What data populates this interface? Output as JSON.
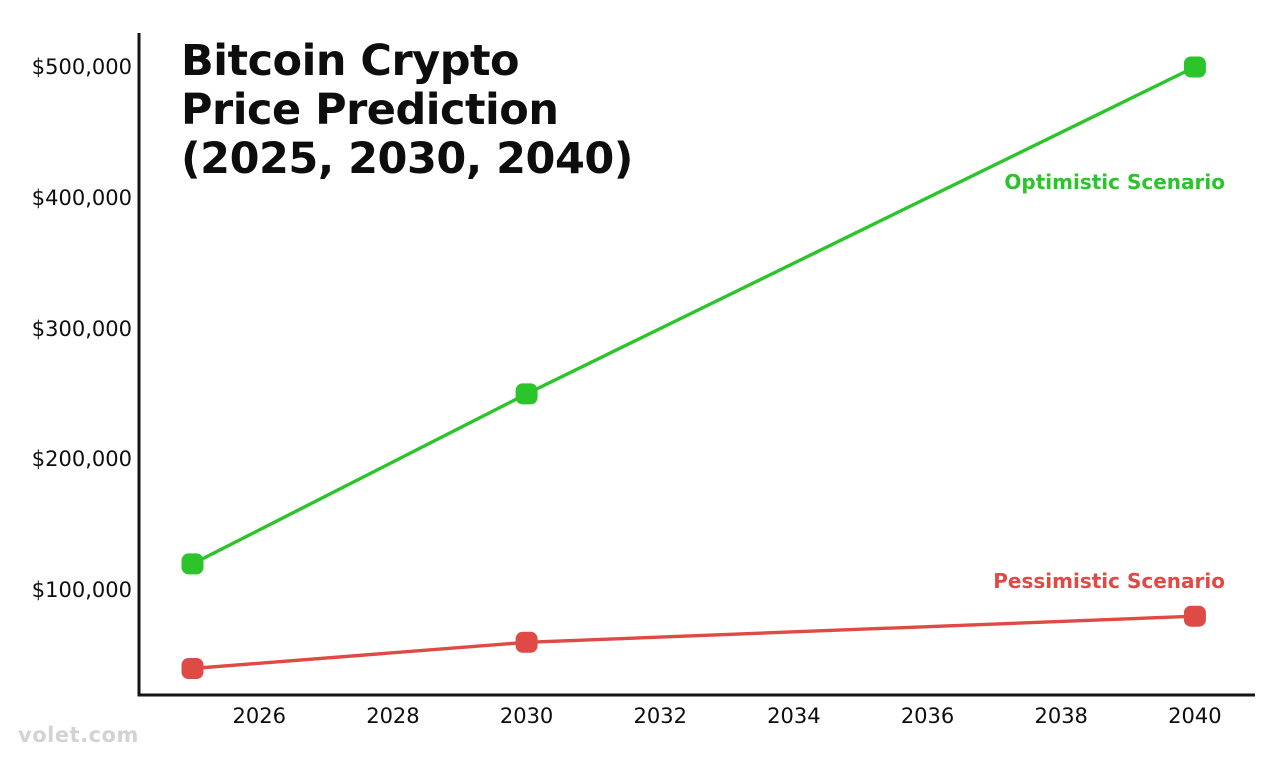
{
  "header": {
    "title_lines": [
      "Bitcoin Crypto",
      "Price Prediction",
      "(2025, 2030, 2040)"
    ]
  },
  "watermark": {
    "text": "volet.com"
  },
  "colors": {
    "background": "#ffffff",
    "axis": "#141414",
    "text": "#0d0d0d",
    "optimistic_green": "#2bc42b",
    "pessimistic_red": "#e04a45",
    "watermark_gray": "#d3d3d3"
  },
  "chart_data": {
    "type": "line",
    "title": "Bitcoin Crypto Price Prediction (2025, 2030, 2040)",
    "xlabel": "",
    "ylabel": "",
    "x": [
      2025,
      2030,
      2040
    ],
    "series": [
      {
        "name": "Optimistic Scenario",
        "color": "#2bc42b",
        "values": [
          120000,
          250000,
          500000
        ]
      },
      {
        "name": "Pessimistic Scenario",
        "color": "#e04a45",
        "values": [
          40000,
          60000,
          80000
        ]
      }
    ],
    "x_ticks": [
      {
        "label": "2026",
        "value": 2026
      },
      {
        "label": "2028",
        "value": 2028
      },
      {
        "label": "2030",
        "value": 2030
      },
      {
        "label": "2032",
        "value": 2032
      },
      {
        "label": "2034",
        "value": 2034
      },
      {
        "label": "2036",
        "value": 2036
      },
      {
        "label": "2038",
        "value": 2038
      },
      {
        "label": "2040",
        "value": 2040
      }
    ],
    "y_ticks": [
      {
        "label": "$500,000",
        "value": 500000
      },
      {
        "label": "$400,000",
        "value": 400000
      },
      {
        "label": "$300,000",
        "value": 300000
      },
      {
        "label": "$200,000",
        "value": 200000
      },
      {
        "label": "$100,000",
        "value": 100000
      }
    ],
    "xlim": [
      2024.2,
      2040.9
    ],
    "ylim": [
      19700,
      526000
    ],
    "grid": false,
    "legend_position": "labels-near-lines-right",
    "marker": "rounded-square"
  }
}
